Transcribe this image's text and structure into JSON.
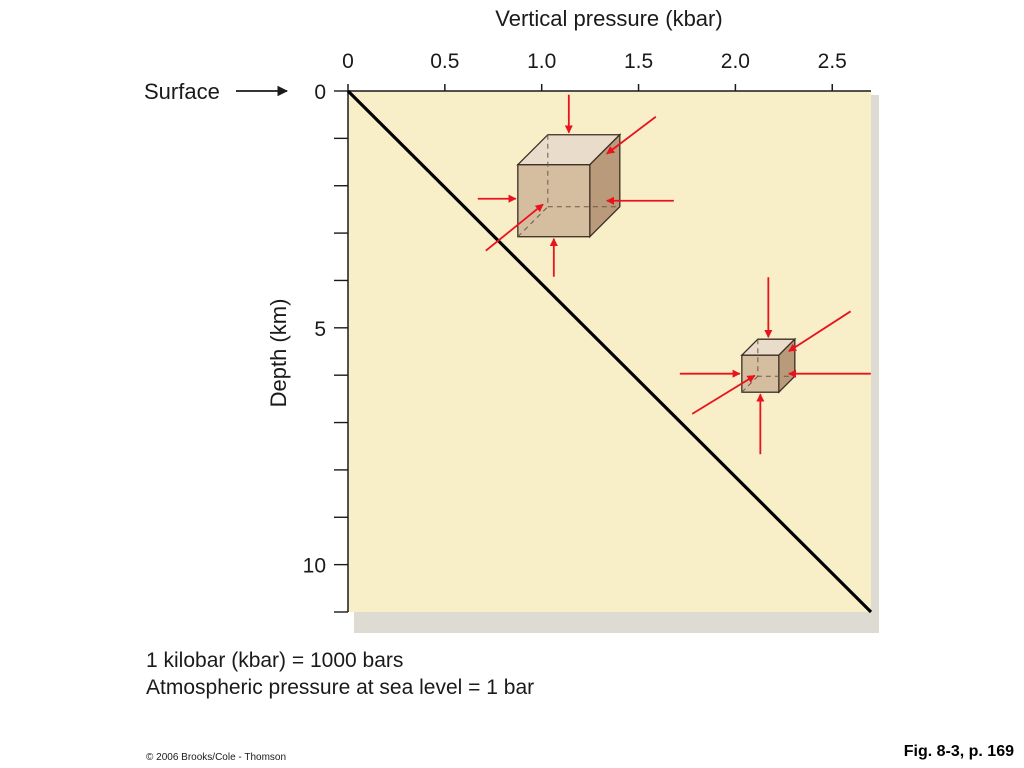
{
  "chart_data": {
    "type": "line",
    "xlabel": "Vertical pressure (kbar)",
    "ylabel": "Depth (km)",
    "x_ticks": [
      "0",
      "0.5",
      "1.0",
      "1.5",
      "2.0",
      "2.5"
    ],
    "y_ticks": [
      "0",
      "5",
      "10"
    ],
    "xlim": [
      0,
      2.7
    ],
    "ylim": [
      0,
      11
    ],
    "y_inverted": true,
    "x_axis_position": "top",
    "grid": false,
    "surface_label": "Surface",
    "series": [
      {
        "x": [
          0,
          2.7
        ],
        "y": [
          0,
          11
        ]
      }
    ],
    "annotations": [
      {
        "type": "cube",
        "size": "large",
        "x": 1.14,
        "y": 2.0
      },
      {
        "type": "cube",
        "size": "small",
        "x": 2.17,
        "y": 5.8
      }
    ]
  },
  "notes": [
    "1 kilobar (kbar) = 1000 bars",
    "Atmospheric pressure at sea level = 1 bar"
  ],
  "copyright": "© 2006 Brooks/Cole - Thomson",
  "figure_ref": "Fig. 8-3, p. 169",
  "colors": {
    "plot_background": "#f8efc8",
    "plot_shadow": "#c8c4b4",
    "line": "#000000",
    "arrow": "#e8131f",
    "cube_front": "#ceb598",
    "cube_top": "#e9dccb",
    "cube_side": "#b99a7a",
    "text": "#1a1a1a"
  }
}
